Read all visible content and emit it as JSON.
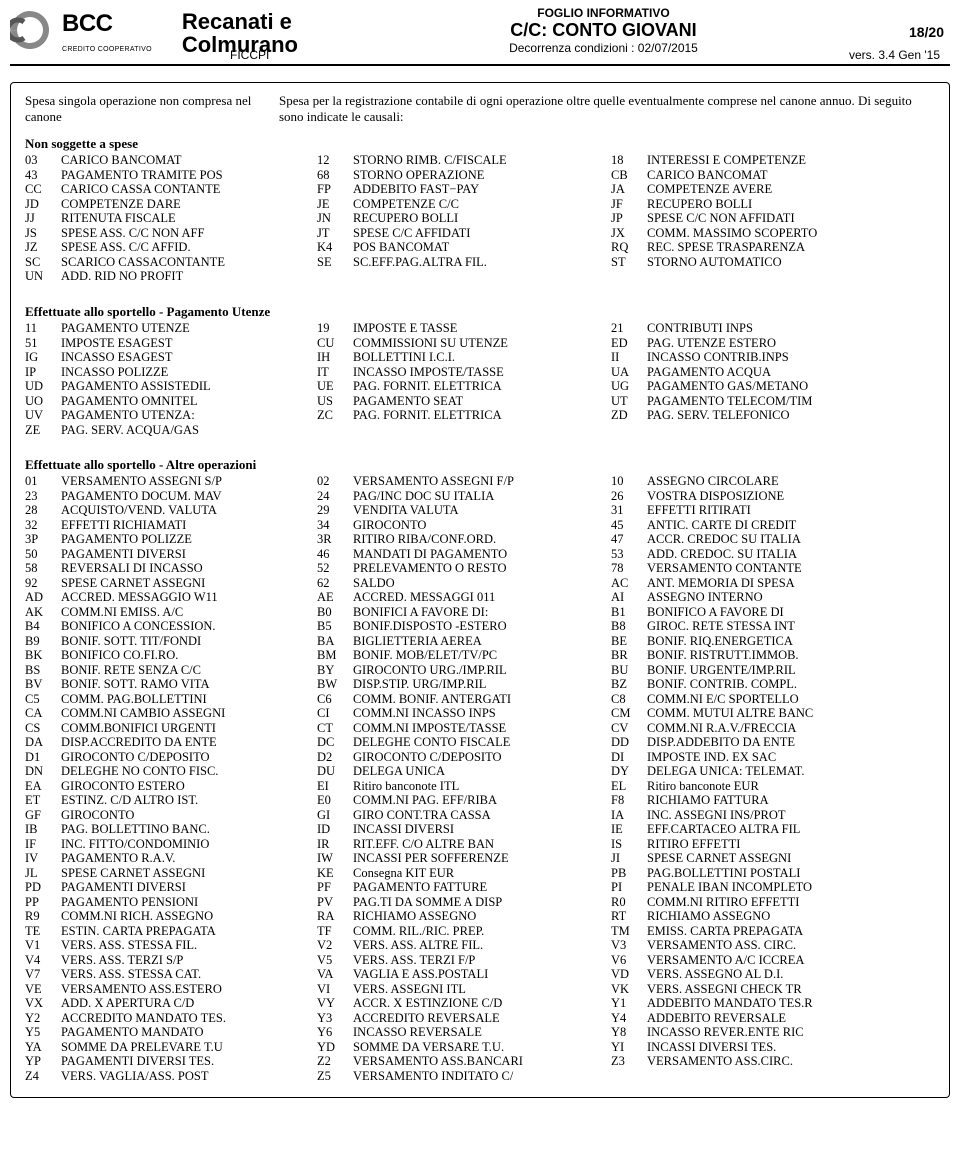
{
  "header": {
    "brand": "BCC",
    "sub_brand": "CREDITO COOPERATIVO",
    "bank_line1": "Recanati e",
    "bank_line2": "Colmurano",
    "ficcpi": "FICCPI",
    "foglio": "FOGLIO INFORMATIVO",
    "conto": "C/C: CONTO GIOVANI",
    "decorrenza": "Decorrenza condizioni : 02/07/2015",
    "page": "18/20",
    "version": "vers. 3.4 Gen '15"
  },
  "intro": {
    "left": "Spesa singola operazione non compresa nel canone",
    "right": "Spesa per la registrazione contabile di ogni operazione oltre quelle eventualmente comprese nel canone annuo. Di seguito sono indicate le causali:"
  },
  "sections": [
    {
      "title": "Non soggette a spese",
      "rows": [
        [
          "03",
          "CARICO BANCOMAT",
          "12",
          "STORNO RIMB. C/FISCALE",
          "18",
          "INTERESSI E COMPETENZE"
        ],
        [
          "43",
          "PAGAMENTO TRAMITE POS",
          "68",
          "STORNO OPERAZIONE",
          "CB",
          "CARICO BANCOMAT"
        ],
        [
          "CC",
          "CARICO CASSA CONTANTE",
          "FP",
          "ADDEBITO FAST−PAY",
          "JA",
          "COMPETENZE AVERE"
        ],
        [
          "JD",
          "COMPETENZE DARE",
          "JE",
          "COMPETENZE C/C",
          "JF",
          "RECUPERO BOLLI"
        ],
        [
          "JJ",
          "RITENUTA FISCALE",
          "JN",
          "RECUPERO BOLLI",
          "JP",
          "SPESE C/C NON AFFIDATI"
        ],
        [
          "JS",
          "SPESE ASS. C/C NON AFF",
          "JT",
          "SPESE C/C AFFIDATI",
          "JX",
          "COMM. MASSIMO SCOPERTO"
        ],
        [
          "JZ",
          "SPESE ASS. C/C AFFID.",
          "K4",
          "POS BANCOMAT",
          "RQ",
          "REC. SPESE TRASPARENZA"
        ],
        [
          "SC",
          "SCARICO CASSACONTANTE",
          "SE",
          "SC.EFF.PAG.ALTRA FIL.",
          "ST",
          "STORNO AUTOMATICO"
        ],
        [
          "UN",
          "ADD. RID NO PROFIT",
          "",
          "",
          "",
          ""
        ]
      ]
    },
    {
      "title": "Effettuate allo sportello - Pagamento Utenze",
      "rows": [
        [
          "11",
          "PAGAMENTO UTENZE",
          "19",
          "IMPOSTE E TASSE",
          "21",
          "CONTRIBUTI INPS"
        ],
        [
          "51",
          "IMPOSTE ESAGEST",
          "CU",
          "COMMISSIONI SU UTENZE",
          "ED",
          "PAG. UTENZE ESTERO"
        ],
        [
          "IG",
          "INCASSO ESAGEST",
          "IH",
          "BOLLETTINI I.C.I.",
          "II",
          "INCASSO CONTRIB.INPS"
        ],
        [
          "IP",
          "INCASSO POLIZZE",
          "IT",
          "INCASSO IMPOSTE/TASSE",
          "UA",
          "PAGAMENTO ACQUA"
        ],
        [
          "UD",
          "PAGAMENTO ASSISTEDIL",
          "UE",
          "PAG. FORNIT. ELETTRICA",
          "UG",
          "PAGAMENTO GAS/METANO"
        ],
        [
          "UO",
          "PAGAMENTO OMNITEL",
          "US",
          "PAGAMENTO SEAT",
          "UT",
          "PAGAMENTO TELECOM/TIM"
        ],
        [
          "UV",
          "PAGAMENTO UTENZA:",
          "ZC",
          "PAG. FORNIT. ELETTRICA",
          "ZD",
          "PAG. SERV. TELEFONICO"
        ],
        [
          "ZE",
          "PAG. SERV. ACQUA/GAS",
          "",
          "",
          "",
          ""
        ]
      ]
    },
    {
      "title": "Effettuate allo sportello - Altre operazioni",
      "rows": [
        [
          "01",
          "VERSAMENTO ASSEGNI S/P",
          "02",
          "VERSAMENTO ASSEGNI F/P",
          "10",
          "ASSEGNO CIRCOLARE"
        ],
        [
          "23",
          "PAGAMENTO DOCUM. MAV",
          "24",
          "PAG/INC DOC SU ITALIA",
          "26",
          "VOSTRA DISPOSIZIONE"
        ],
        [
          "28",
          "ACQUISTO/VEND. VALUTA",
          "29",
          "VENDITA VALUTA",
          "31",
          "EFFETTI RITIRATI"
        ],
        [
          "32",
          "EFFETTI RICHIAMATI",
          "34",
          "GIROCONTO",
          "45",
          "ANTIC. CARTE DI CREDIT"
        ],
        [
          "3P",
          "PAGAMENTO POLIZZE",
          "3R",
          "RITIRO RIBA/CONF.ORD.",
          "47",
          "ACCR. CREDOC SU ITALIA"
        ],
        [
          "50",
          "PAGAMENTI DIVERSI",
          "46",
          "MANDATI DI PAGAMENTO",
          "53",
          "ADD. CREDOC. SU ITALIA"
        ],
        [
          "58",
          "REVERSALI DI INCASSO",
          "52",
          "PRELEVAMENTO O RESTO",
          "78",
          "VERSAMENTO CONTANTE"
        ],
        [
          "92",
          "SPESE CARNET ASSEGNI",
          "62",
          "SALDO",
          "AC",
          "ANT. MEMORIA DI SPESA"
        ],
        [
          "AD",
          "ACCRED. MESSAGGIO W11",
          "AE",
          "ACCRED. MESSAGGI 011",
          "AI",
          "ASSEGNO INTERNO"
        ],
        [
          "AK",
          "COMM.NI EMISS. A/C",
          "B0",
          "BONIFICI A FAVORE DI:",
          "B1",
          "BONIFICO A FAVORE DI"
        ],
        [
          "B4",
          "BONIFICO A CONCESSION.",
          "B5",
          "BONIF.DISPOSTO -ESTERO",
          "B8",
          "GIROC. RETE STESSA INT"
        ],
        [
          "B9",
          "BONIF. SOTT. TIT/FONDI",
          "BA",
          "BIGLIETTERIA AEREA",
          "BE",
          "BONIF. RIQ.ENERGETICA"
        ],
        [
          "BK",
          "BONIFICO CO.FI.RO.",
          "BM",
          "BONIF. MOB/ELET/TV/PC",
          "BR",
          "BONIF. RISTRUTT.IMMOB."
        ],
        [
          "BS",
          "BONIF. RETE SENZA C/C",
          "BY",
          "GIROCONTO URG./IMP.RIL",
          "BU",
          "BONIF. URGENTE/IMP.RIL"
        ],
        [
          "BV",
          "BONIF. SOTT. RAMO VITA",
          "BW",
          "DISP.STIP. URG/IMP.RIL",
          "BZ",
          "BONIF. CONTRIB. COMPL."
        ],
        [
          "C5",
          "COMM. PAG.BOLLETTINI",
          "C6",
          "COMM. BONIF. ANTERGATI",
          "C8",
          "COMM.NI E/C SPORTELLO"
        ],
        [
          "CA",
          "COMM.NI CAMBIO ASSEGNI",
          "CI",
          "COMM.NI INCASSO INPS",
          "CM",
          "COMM. MUTUI ALTRE BANC"
        ],
        [
          "CS",
          "COMM.BONIFICI URGENTI",
          "CT",
          "COMM.NI IMPOSTE/TASSE",
          "CV",
          "COMM.NI R.A.V./FRECCIA"
        ],
        [
          "DA",
          "DISP.ACCREDITO DA ENTE",
          "DC",
          "DELEGHE CONTO FISCALE",
          "DD",
          "DISP.ADDEBITO DA ENTE"
        ],
        [
          "D1",
          "GIROCONTO C/DEPOSITO",
          "D2",
          "GIROCONTO C/DEPOSITO",
          "DI",
          "IMPOSTE IND. EX SAC"
        ],
        [
          "DN",
          "DELEGHE NO CONTO FISC.",
          "DU",
          "DELEGA UNICA",
          "DY",
          "DELEGA UNICA: TELEMAT."
        ],
        [
          "EA",
          "GIROCONTO ESTERO",
          "EI",
          "Ritiro banconote ITL",
          "EL",
          "Ritiro banconote EUR"
        ],
        [
          "ET",
          "ESTINZ. C/D ALTRO IST.",
          "E0",
          "COMM.NI PAG. EFF/RIBA",
          "F8",
          "RICHIAMO FATTURA"
        ],
        [
          "GF",
          "GIROCONTO",
          "GI",
          "GIRO CONT.TRA CASSA",
          "IA",
          "INC. ASSEGNI INS/PROT"
        ],
        [
          "IB",
          "PAG. BOLLETTINO BANC.",
          "ID",
          "INCASSI DIVERSI",
          "IE",
          "EFF.CARTACEO ALTRA FIL"
        ],
        [
          "IF",
          "INC. FITTO/CONDOMINIO",
          "IR",
          "RIT.EFF. C/O ALTRE BAN",
          "IS",
          "RITIRO EFFETTI"
        ],
        [
          "IV",
          "PAGAMENTO R.A.V.",
          "IW",
          "INCASSI PER SOFFERENZE",
          "JI",
          "SPESE CARNET ASSEGNI"
        ],
        [
          "JL",
          "SPESE CARNET ASSEGNI",
          "KE",
          "Consegna KIT EUR",
          "PB",
          "PAG.BOLLETTINI POSTALI"
        ],
        [
          "PD",
          "PAGAMENTI DIVERSI",
          "PF",
          "PAGAMENTO FATTURE",
          "PI",
          "PENALE IBAN INCOMPLETO"
        ],
        [
          "PP",
          "PAGAMENTO PENSIONI",
          "PV",
          "PAG.TI DA SOMME A DISP",
          "R0",
          "COMM.NI RITIRO EFFETTI"
        ],
        [
          "R9",
          "COMM.NI RICH. ASSEGNO",
          "RA",
          "RICHIAMO ASSEGNO",
          "RT",
          "RICHIAMO ASSEGNO"
        ],
        [
          "TE",
          "ESTIN. CARTA PREPAGATA",
          "TF",
          "COMM. RIL./RIC. PREP.",
          "TM",
          "EMISS. CARTA PREPAGATA"
        ],
        [
          "V1",
          "VERS. ASS. STESSA FIL.",
          "V2",
          "VERS. ASS. ALTRE FIL.",
          "V3",
          "VERSAMENTO ASS. CIRC."
        ],
        [
          "V4",
          "VERS. ASS. TERZI S/P",
          "V5",
          "VERS. ASS. TERZI F/P",
          "V6",
          "VERSAMENTO A/C ICCREA"
        ],
        [
          "V7",
          "VERS. ASS. STESSA CAT.",
          "VA",
          "VAGLIA E ASS.POSTALI",
          "VD",
          "VERS. ASSEGNO AL D.I."
        ],
        [
          "VE",
          "VERSAMENTO ASS.ESTERO",
          "VI",
          "VERS. ASSEGNI ITL",
          "VK",
          "VERS. ASSEGNI CHECK TR"
        ],
        [
          "VX",
          "ADD. X APERTURA C/D",
          "VY",
          "ACCR. X ESTINZIONE C/D",
          "Y1",
          "ADDEBITO MANDATO TES.R"
        ],
        [
          "Y2",
          "ACCREDITO MANDATO TES.",
          "Y3",
          "ACCREDITO REVERSALE",
          "Y4",
          "ADDEBITO REVERSALE"
        ],
        [
          "Y5",
          "PAGAMENTO MANDATO",
          "Y6",
          "INCASSO REVERSALE",
          "Y8",
          "INCASSO REVER.ENTE RIC"
        ],
        [
          "YA",
          "SOMME DA PRELEVARE T.U",
          "YD",
          "SOMME DA VERSARE T.U.",
          "YI",
          "INCASSI DIVERSI TES."
        ],
        [
          "YP",
          "PAGAMENTI DIVERSI TES.",
          "Z2",
          "VERSAMENTO ASS.BANCARI",
          "Z3",
          "VERSAMENTO ASS.CIRC."
        ],
        [
          "Z4",
          "VERS. VAGLIA/ASS. POST",
          "Z5",
          "VERSAMENTO INDITATO C/",
          "",
          ""
        ]
      ]
    }
  ]
}
